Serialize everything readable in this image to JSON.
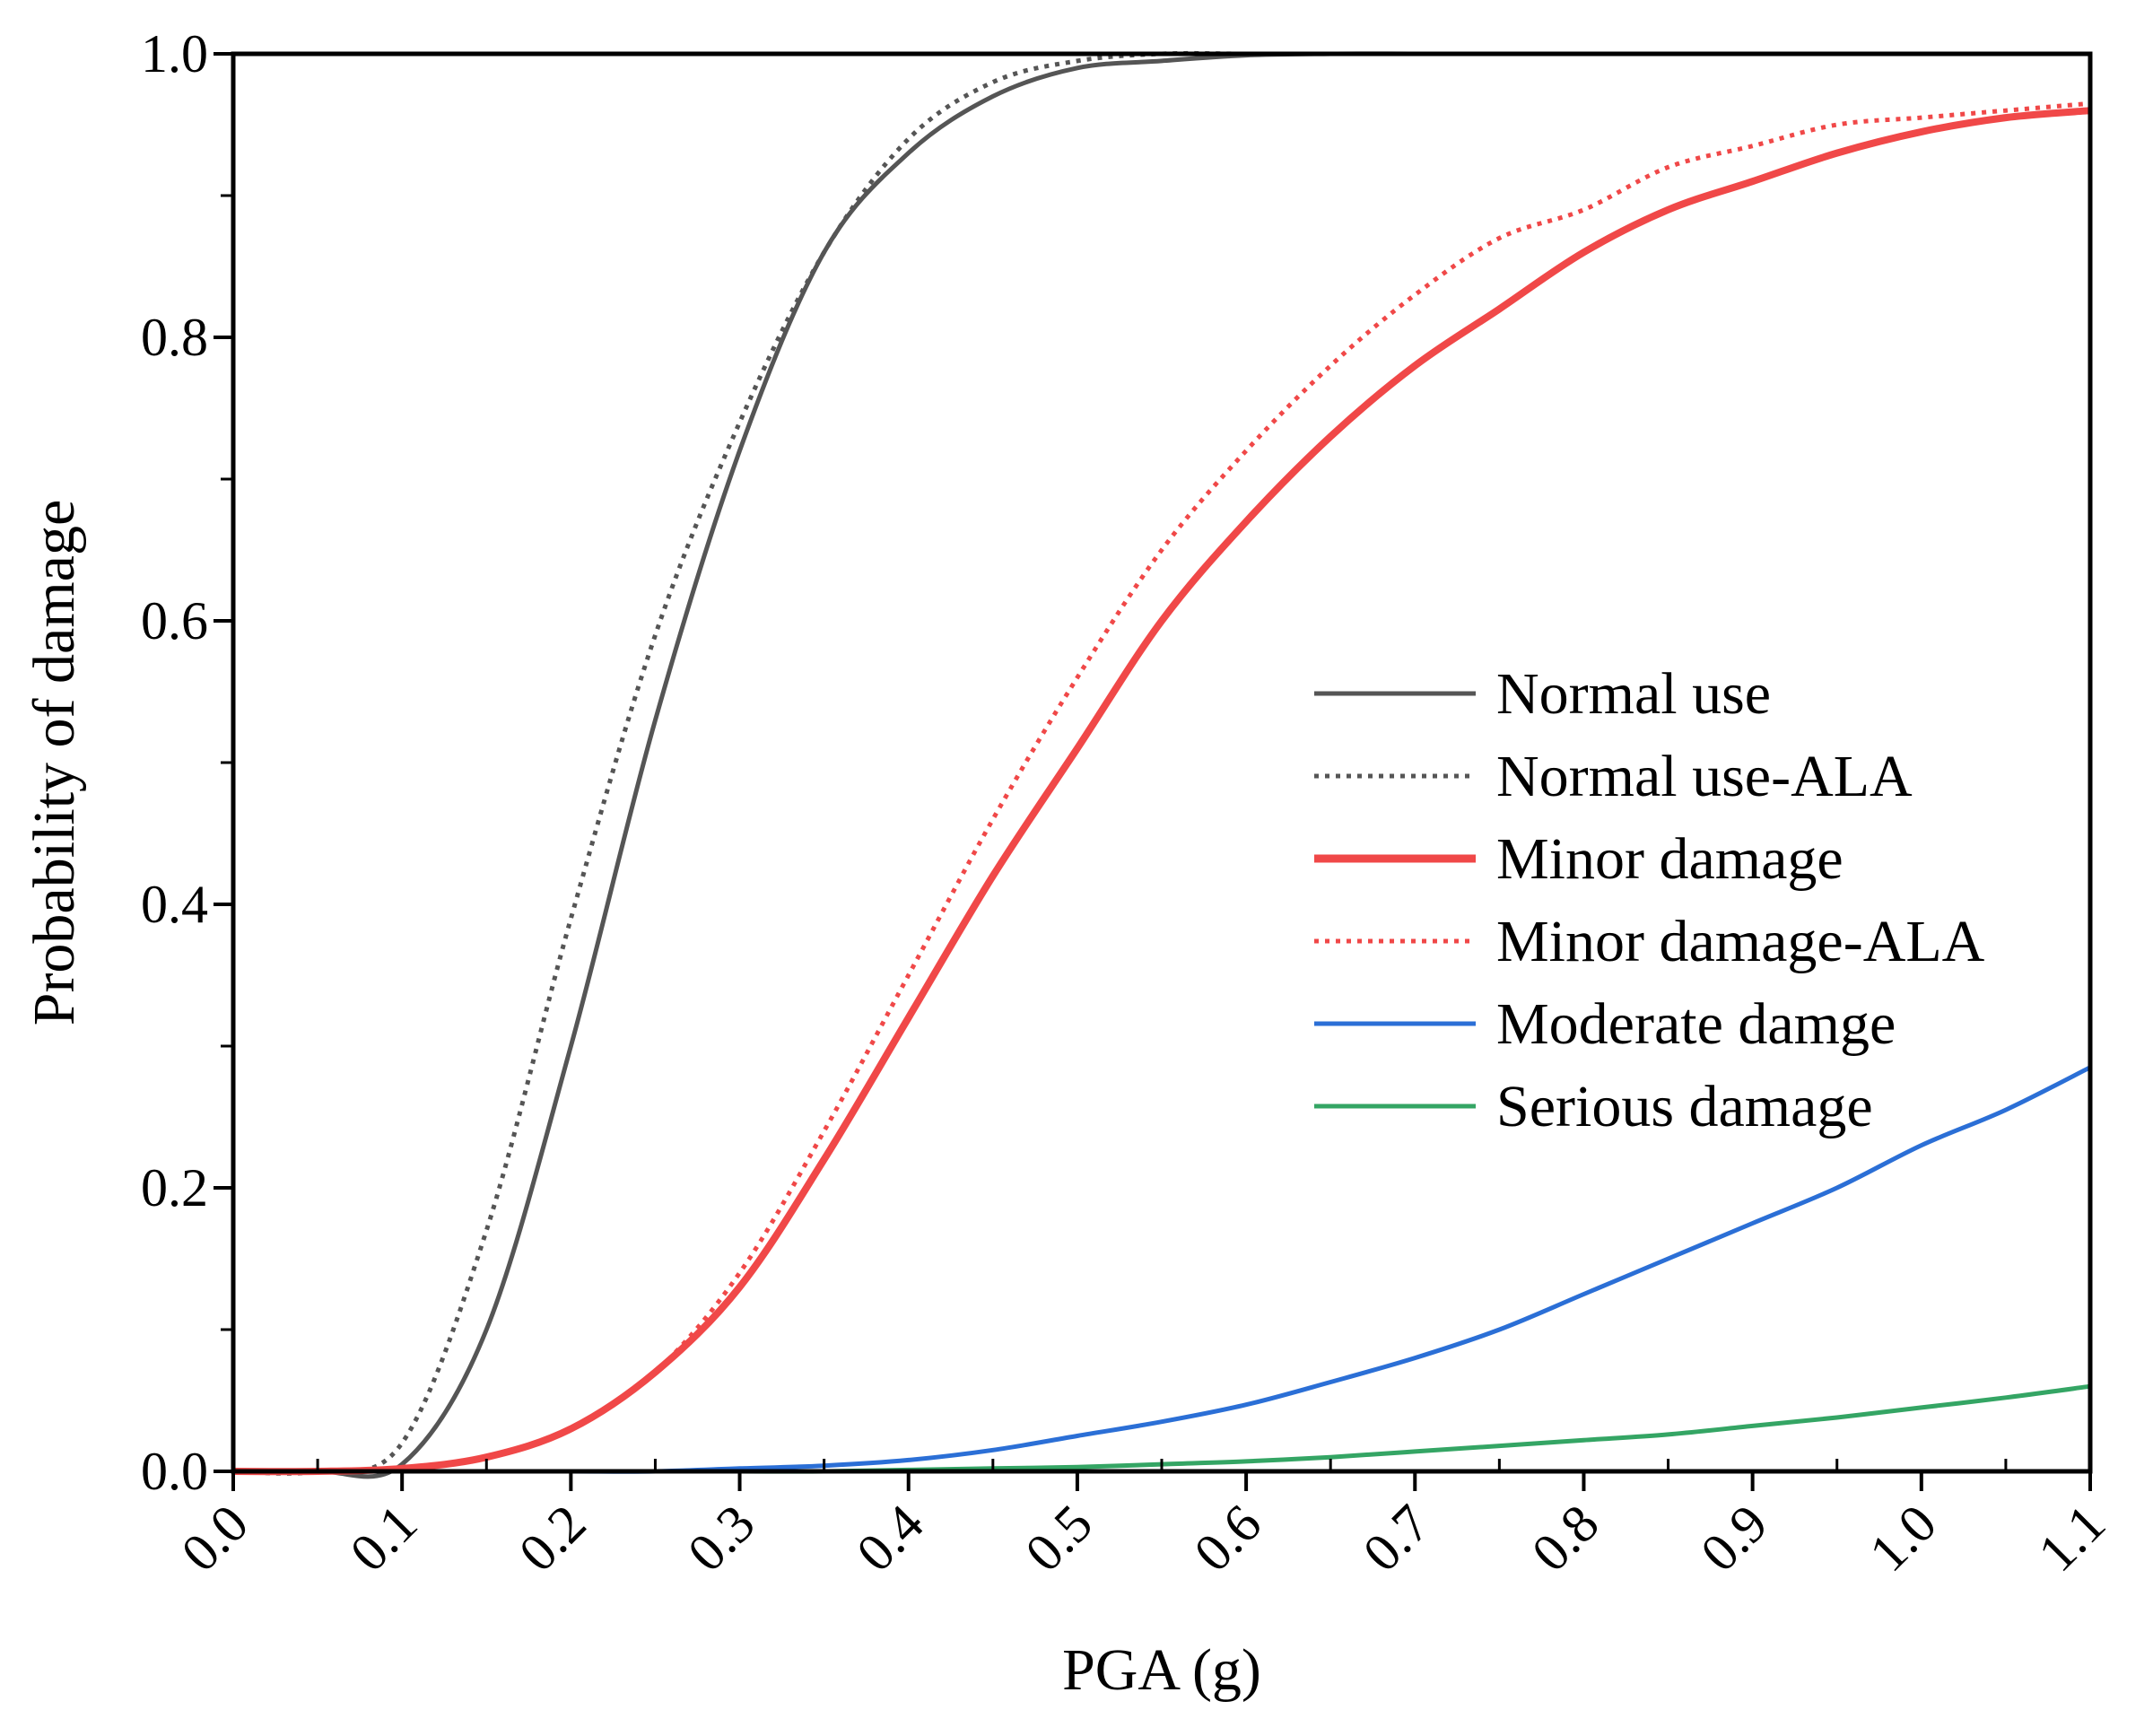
{
  "chart_data": {
    "type": "line",
    "title": "",
    "xlabel": "PGA (g)",
    "ylabel": "Probability of damage",
    "xlim": [
      0.0,
      1.1
    ],
    "ylim": [
      0.0,
      1.0
    ],
    "x_ticks": [
      "0.0",
      "0.1",
      "0.2",
      "0.3",
      "0.4",
      "0.5",
      "0.6",
      "0.7",
      "0.8",
      "0.9",
      "1.0",
      "1.1"
    ],
    "y_ticks": [
      "0.0",
      "0.2",
      "0.4",
      "0.6",
      "0.8",
      "1.0"
    ],
    "grid": false,
    "legend_position": "right",
    "x": [
      0.0,
      0.05,
      0.1,
      0.15,
      0.2,
      0.25,
      0.3,
      0.35,
      0.4,
      0.45,
      0.5,
      0.55,
      0.6,
      0.65,
      0.7,
      0.75,
      0.8,
      0.85,
      0.9,
      0.95,
      1.0,
      1.05,
      1.1
    ],
    "series": [
      {
        "name": "Normal use",
        "color": "#555555",
        "style": "solid",
        "values": [
          0.0,
          0.0,
          0.005,
          0.1,
          0.3,
          0.53,
          0.72,
          0.86,
          0.93,
          0.97,
          0.99,
          0.995,
          0.999,
          1.0,
          1.0,
          1.0,
          1.0,
          1.0,
          1.0,
          1.0,
          1.0,
          1.0,
          1.0
        ]
      },
      {
        "name": "Normal use-ALA",
        "color": "#555555",
        "style": "dotted",
        "values": [
          0.0,
          0.0,
          0.02,
          0.17,
          0.39,
          0.59,
          0.74,
          0.86,
          0.94,
          0.98,
          0.995,
          1.0,
          1.0,
          1.0,
          1.0,
          1.0,
          1.0,
          1.0,
          1.0,
          1.0,
          1.0,
          1.0,
          1.0
        ]
      },
      {
        "name": "Minor damage",
        "color": "#f04848",
        "style": "solid",
        "values": [
          0.0,
          0.0,
          0.002,
          0.01,
          0.03,
          0.07,
          0.13,
          0.22,
          0.32,
          0.42,
          0.51,
          0.6,
          0.67,
          0.73,
          0.78,
          0.82,
          0.86,
          0.89,
          0.91,
          0.93,
          0.945,
          0.955,
          0.96
        ]
      },
      {
        "name": "Minor damage-ALA",
        "color": "#f04848",
        "style": "dotted",
        "values": [
          0.0,
          0.0,
          0.002,
          0.01,
          0.03,
          0.07,
          0.14,
          0.24,
          0.35,
          0.46,
          0.56,
          0.65,
          0.72,
          0.78,
          0.83,
          0.87,
          0.89,
          0.92,
          0.935,
          0.95,
          0.955,
          0.96,
          0.965
        ]
      },
      {
        "name": "Moderate damge",
        "color": "#2b6fd6",
        "style": "solid",
        "values": [
          0.0,
          0.0,
          0.0,
          0.0,
          0.0,
          0.0,
          0.002,
          0.004,
          0.008,
          0.015,
          0.025,
          0.035,
          0.047,
          0.063,
          0.08,
          0.1,
          0.125,
          0.15,
          0.175,
          0.2,
          0.23,
          0.255,
          0.285
        ]
      },
      {
        "name": "Serious damage",
        "color": "#34a564",
        "style": "solid",
        "values": [
          0.0,
          0.0,
          0.0,
          0.0,
          0.0,
          0.0,
          0.0,
          0.0,
          0.001,
          0.002,
          0.003,
          0.005,
          0.007,
          0.01,
          0.014,
          0.018,
          0.022,
          0.026,
          0.032,
          0.038,
          0.045,
          0.052,
          0.06
        ]
      }
    ]
  }
}
